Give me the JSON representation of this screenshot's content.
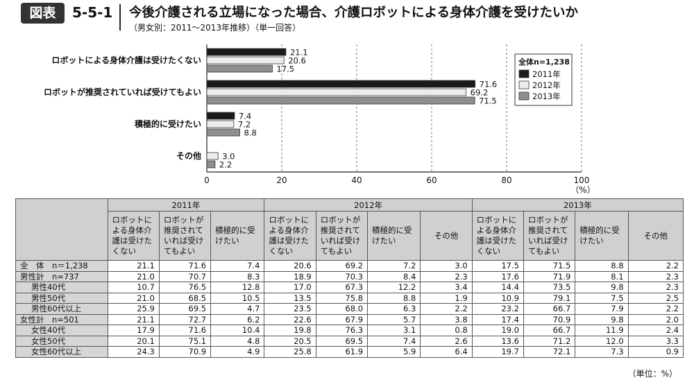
{
  "header": {
    "badge": "図表",
    "figure_no": "5-5-1",
    "title": "今後介護される立場になった場合、介護ロボットによる身体介護を受けたいか",
    "subtitle": "（男女別：2011〜2013年推移）（単一回答）"
  },
  "chart_data": {
    "type": "bar",
    "orientation": "horizontal",
    "categories": [
      "ロボットによる身体介護は受けたくない",
      "ロボットが推奨されていれば受けてもよい",
      "積極的に受けたい",
      "その他"
    ],
    "series": [
      {
        "name": "2011年",
        "color": "#1a1a1a",
        "values": [
          21.1,
          71.6,
          7.4,
          null
        ]
      },
      {
        "name": "2012年",
        "color": "#ececec",
        "values": [
          20.6,
          69.2,
          7.2,
          3.0
        ]
      },
      {
        "name": "2013年",
        "color": "#8f8f8f",
        "values": [
          17.5,
          71.5,
          8.8,
          2.2
        ]
      }
    ],
    "value_labels": [
      [
        "21.1",
        "20.6",
        "17.5"
      ],
      [
        "71.6",
        "69.2",
        "71.5"
      ],
      [
        "7.4",
        "7.2",
        "8.8"
      ],
      [
        "",
        "3.0",
        "2.2"
      ]
    ],
    "xlim": [
      0,
      100
    ],
    "xticks": [
      "0",
      "20",
      "40",
      "60",
      "80",
      "100"
    ],
    "xunit": "（%）",
    "legend_title": "全体n=1,238",
    "legend_position": "right",
    "grid": "vertical dashed"
  },
  "table": {
    "years": [
      "2011年",
      "2012年",
      "2013年"
    ],
    "columns_2011": [
      "ロボットによる身体介護は受けたくない",
      "ロボットが推奨されていれば受けてもよい",
      "積極的に受けたい"
    ],
    "columns": [
      "ロボットによる身体介護は受けたくない",
      "ロボットが推奨されていれば受けてもよい",
      "積極的に受けたい",
      "その他"
    ],
    "rows": [
      {
        "label": "全　体　n＝1,238",
        "values": [
          "21.1",
          "71.6",
          "7.4",
          "20.6",
          "69.2",
          "7.2",
          "3.0",
          "17.5",
          "71.5",
          "8.8",
          "2.2"
        ]
      },
      {
        "label": "男性計　n=737",
        "values": [
          "21.0",
          "70.7",
          "8.3",
          "18.9",
          "70.3",
          "8.4",
          "2.3",
          "17.6",
          "71.9",
          "8.1",
          "2.3"
        ]
      },
      {
        "label": "男性40代",
        "values": [
          "10.7",
          "76.5",
          "12.8",
          "17.0",
          "67.3",
          "12.2",
          "3.4",
          "14.4",
          "73.5",
          "9.8",
          "2.3"
        ]
      },
      {
        "label": "男性50代",
        "values": [
          "21.0",
          "68.5",
          "10.5",
          "13.5",
          "75.8",
          "8.8",
          "1.9",
          "10.9",
          "79.1",
          "7.5",
          "2.5"
        ]
      },
      {
        "label": "男性60代以上",
        "values": [
          "25.9",
          "69.5",
          "4.7",
          "23.5",
          "68.0",
          "6.3",
          "2.2",
          "23.2",
          "66.7",
          "7.9",
          "2.2"
        ]
      },
      {
        "label": "女性計　n=501",
        "values": [
          "21.1",
          "72.7",
          "6.2",
          "22.6",
          "67.9",
          "5.7",
          "3.8",
          "17.4",
          "70.9",
          "9.8",
          "2.0"
        ]
      },
      {
        "label": "女性40代",
        "values": [
          "17.9",
          "71.6",
          "10.4",
          "19.8",
          "76.3",
          "3.1",
          "0.8",
          "19.0",
          "66.7",
          "11.9",
          "2.4"
        ]
      },
      {
        "label": "女性50代",
        "values": [
          "20.1",
          "75.1",
          "4.8",
          "20.5",
          "69.5",
          "7.4",
          "2.6",
          "13.6",
          "71.2",
          "12.0",
          "3.3"
        ]
      },
      {
        "label": "女性60代以上",
        "values": [
          "24.3",
          "70.9",
          "4.9",
          "25.8",
          "61.9",
          "5.9",
          "6.4",
          "19.7",
          "72.1",
          "7.3",
          "0.9"
        ]
      }
    ],
    "unit_note": "（単位：%）"
  }
}
